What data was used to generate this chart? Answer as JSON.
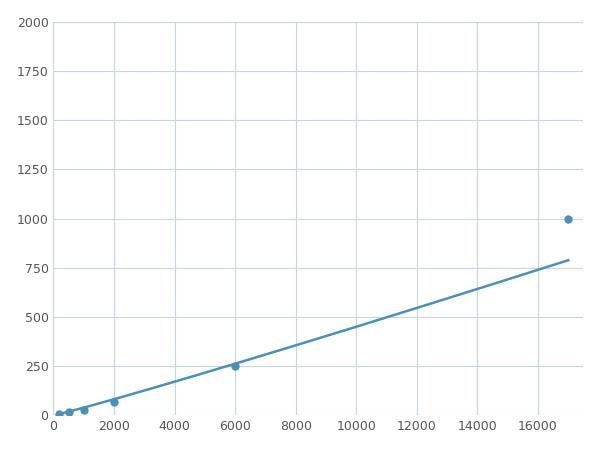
{
  "x_data": [
    200,
    500,
    1000,
    2000,
    6000,
    17000
  ],
  "y_data": [
    10,
    18,
    30,
    70,
    250,
    1000
  ],
  "line_color": "#4a90b8",
  "marker_color": "#4a90b8",
  "marker_size": 6,
  "linewidth": 1.8,
  "xlim": [
    0,
    17500
  ],
  "ylim": [
    0,
    2000
  ],
  "xticks": [
    0,
    2000,
    4000,
    6000,
    8000,
    10000,
    12000,
    14000,
    16000
  ],
  "yticks": [
    0,
    250,
    500,
    750,
    1000,
    1250,
    1500,
    1750,
    2000
  ],
  "grid": true,
  "background_color": "#ffffff",
  "grid_color": "#c8d4e0",
  "tick_color": "#555555",
  "tick_fontsize": 9
}
